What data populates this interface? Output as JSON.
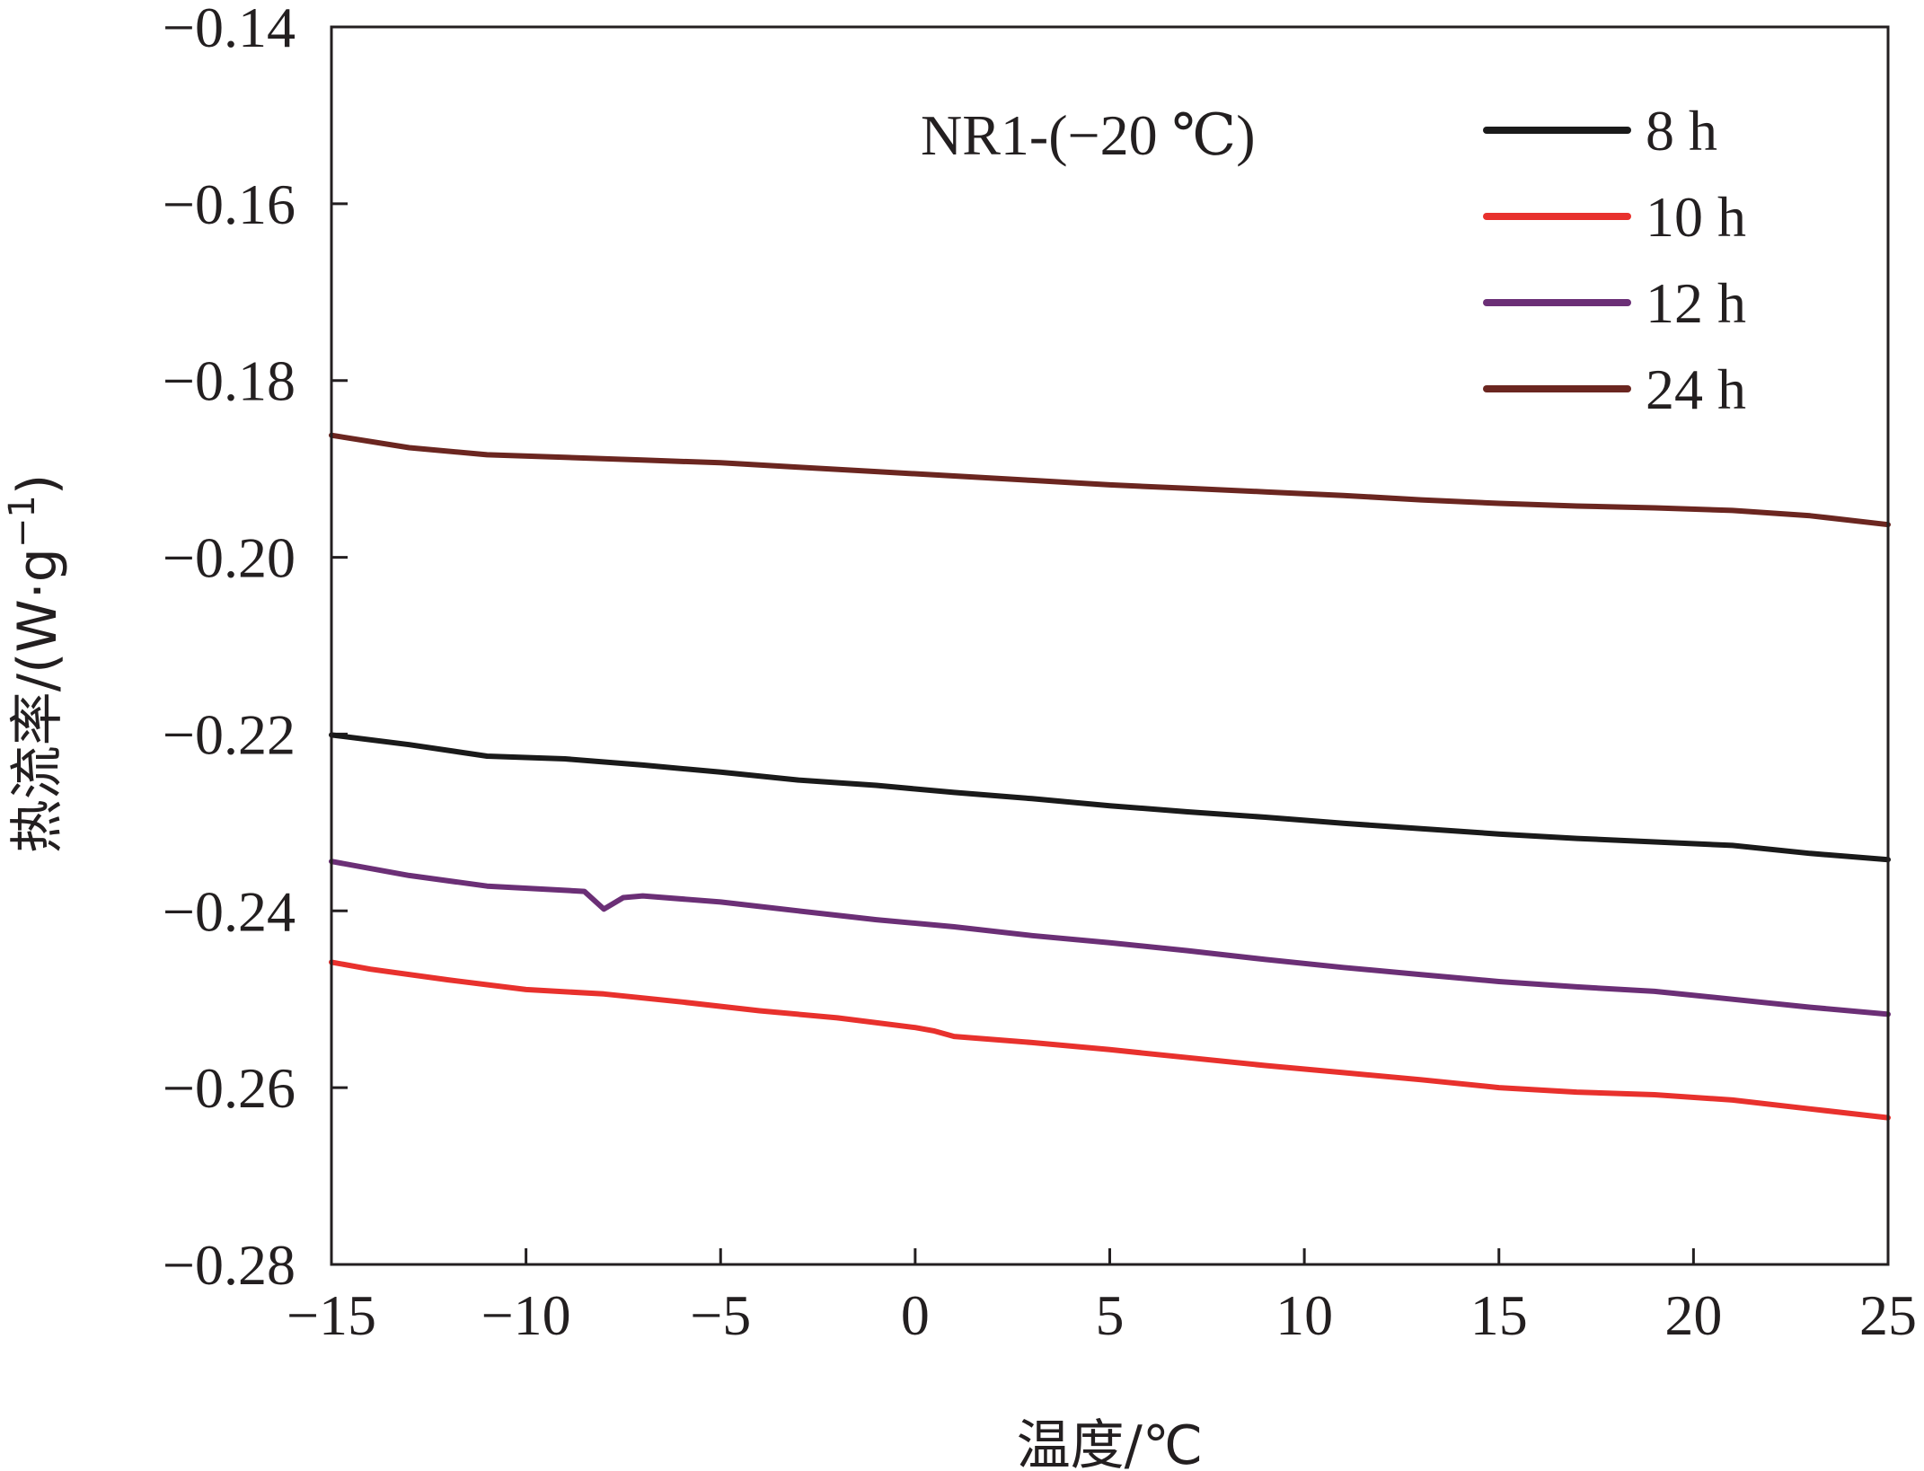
{
  "chart_data": {
    "type": "line",
    "annotation": "NR1-(−20 ℃)",
    "xlabel": "温度/℃",
    "ylabel": "热流率/(W·g",
    "ylabel_sup": "−1",
    "ylabel_close": ")",
    "xlim": [
      -15,
      25
    ],
    "ylim": [
      -0.28,
      -0.14
    ],
    "xticks": [
      -15,
      -10,
      -5,
      0,
      5,
      10,
      15,
      20,
      25
    ],
    "xtick_labels": [
      "−15",
      "−10",
      "−5",
      "0",
      "5",
      "10",
      "15",
      "20",
      "25"
    ],
    "yticks": [
      -0.14,
      -0.16,
      -0.18,
      -0.2,
      -0.22,
      -0.24,
      -0.26,
      -0.28
    ],
    "ytick_labels": [
      "−0.14",
      "−0.16",
      "−0.18",
      "−0.20",
      "−0.22",
      "−0.24",
      "−0.26",
      "−0.28"
    ],
    "grid": false,
    "legend_position": "top-right",
    "series": [
      {
        "name": "8 h",
        "color": "#1a1a1a",
        "points": [
          [
            -15,
            -0.2201
          ],
          [
            -13,
            -0.2212
          ],
          [
            -11,
            -0.2225
          ],
          [
            -9,
            -0.2228
          ],
          [
            -7,
            -0.2235
          ],
          [
            -5,
            -0.2243
          ],
          [
            -3,
            -0.2252
          ],
          [
            -1,
            -0.2258
          ],
          [
            0,
            -0.2262
          ],
          [
            1,
            -0.2266
          ],
          [
            3,
            -0.2273
          ],
          [
            5,
            -0.2281
          ],
          [
            7,
            -0.2288
          ],
          [
            9,
            -0.2294
          ],
          [
            11,
            -0.2301
          ],
          [
            13,
            -0.2307
          ],
          [
            15,
            -0.2313
          ],
          [
            17,
            -0.2318
          ],
          [
            19,
            -0.2322
          ],
          [
            21,
            -0.2326
          ],
          [
            23,
            -0.2335
          ],
          [
            25,
            -0.2342
          ]
        ]
      },
      {
        "name": "10 h",
        "color": "#e8312d",
        "points": [
          [
            -15,
            -0.2458
          ],
          [
            -14,
            -0.2466
          ],
          [
            -12,
            -0.2478
          ],
          [
            -10,
            -0.2489
          ],
          [
            -8,
            -0.2494
          ],
          [
            -6,
            -0.2503
          ],
          [
            -4,
            -0.2513
          ],
          [
            -2,
            -0.2521
          ],
          [
            0,
            -0.2532
          ],
          [
            0.5,
            -0.2536
          ],
          [
            1,
            -0.2542
          ],
          [
            3,
            -0.2549
          ],
          [
            5,
            -0.2557
          ],
          [
            7,
            -0.2566
          ],
          [
            9,
            -0.2575
          ],
          [
            11,
            -0.2583
          ],
          [
            13,
            -0.2591
          ],
          [
            15,
            -0.26
          ],
          [
            17,
            -0.2605
          ],
          [
            19,
            -0.2608
          ],
          [
            21,
            -0.2614
          ],
          [
            23,
            -0.2624
          ],
          [
            25,
            -0.2634
          ]
        ]
      },
      {
        "name": "12 h",
        "color": "#6b2f76",
        "points": [
          [
            -15,
            -0.2344
          ],
          [
            -13,
            -0.236
          ],
          [
            -11,
            -0.2372
          ],
          [
            -8.5,
            -0.2378
          ],
          [
            -8,
            -0.2398
          ],
          [
            -7.5,
            -0.2385
          ],
          [
            -7,
            -0.2383
          ],
          [
            -5,
            -0.239
          ],
          [
            -3,
            -0.24
          ],
          [
            -1,
            -0.241
          ],
          [
            1,
            -0.2418
          ],
          [
            3,
            -0.2428
          ],
          [
            5,
            -0.2436
          ],
          [
            7,
            -0.2445
          ],
          [
            9,
            -0.2455
          ],
          [
            11,
            -0.2464
          ],
          [
            13,
            -0.2472
          ],
          [
            15,
            -0.248
          ],
          [
            17,
            -0.2486
          ],
          [
            19,
            -0.2491
          ],
          [
            21,
            -0.25
          ],
          [
            23,
            -0.2509
          ],
          [
            25,
            -0.2517
          ]
        ]
      },
      {
        "name": "24 h",
        "color": "#6b2620",
        "points": [
          [
            -15,
            -0.1862
          ],
          [
            -13,
            -0.1876
          ],
          [
            -11,
            -0.1884
          ],
          [
            -9,
            -0.1887
          ],
          [
            -7,
            -0.189
          ],
          [
            -5,
            -0.1893
          ],
          [
            -3,
            -0.1898
          ],
          [
            -1,
            -0.1903
          ],
          [
            1,
            -0.1908
          ],
          [
            3,
            -0.1913
          ],
          [
            5,
            -0.1918
          ],
          [
            7,
            -0.1922
          ],
          [
            9,
            -0.1926
          ],
          [
            11,
            -0.193
          ],
          [
            13,
            -0.1935
          ],
          [
            15,
            -0.1939
          ],
          [
            17,
            -0.1942
          ],
          [
            19,
            -0.1944
          ],
          [
            21,
            -0.1947
          ],
          [
            23,
            -0.1953
          ],
          [
            25,
            -0.1963
          ]
        ]
      }
    ]
  }
}
